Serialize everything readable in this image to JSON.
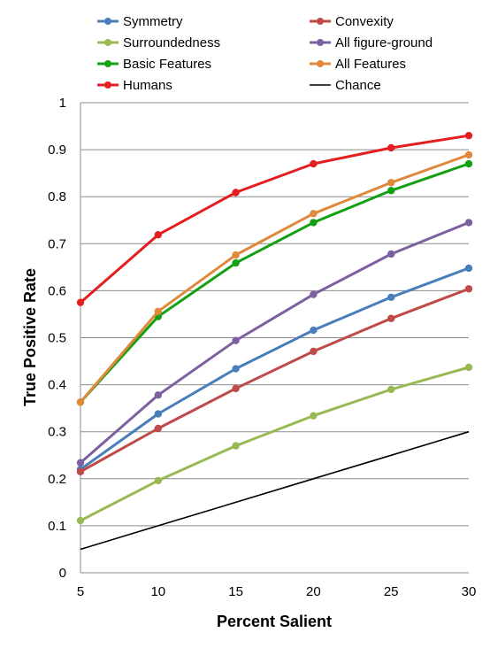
{
  "chart_data": {
    "type": "line",
    "title": "",
    "xlabel": "Percent Salient",
    "ylabel": "True Positive Rate",
    "x": [
      5,
      10,
      15,
      20,
      25,
      30
    ],
    "xlim": [
      5,
      30
    ],
    "ylim": [
      0,
      1
    ],
    "xticks": [
      "5",
      "10",
      "15",
      "20",
      "25",
      "30"
    ],
    "yticks": [
      "0",
      "0.1",
      "0.2",
      "0.3",
      "0.4",
      "0.5",
      "0.6",
      "0.7",
      "0.8",
      "0.9",
      "1"
    ],
    "grid": "horizontal",
    "legend_position": "top",
    "series": [
      {
        "name": "Symmetry",
        "color": "#4a7ebb",
        "markers": true,
        "values": [
          0.22,
          0.338,
          0.434,
          0.516,
          0.586,
          0.648
        ]
      },
      {
        "name": "Convexity",
        "color": "#be4b48",
        "markers": true,
        "values": [
          0.215,
          0.307,
          0.392,
          0.471,
          0.541,
          0.604
        ]
      },
      {
        "name": "Surroundedness",
        "color": "#98b954",
        "markers": true,
        "values": [
          0.111,
          0.196,
          0.27,
          0.334,
          0.39,
          0.437
        ]
      },
      {
        "name": "All figure-ground",
        "color": "#7d60a0",
        "markers": true,
        "values": [
          0.234,
          0.378,
          0.494,
          0.592,
          0.678,
          0.745
        ]
      },
      {
        "name": "Basic Features",
        "color": "#14a014",
        "markers": true,
        "values": [
          0.363,
          0.545,
          0.659,
          0.745,
          0.813,
          0.87
        ]
      },
      {
        "name": "All Features",
        "color": "#e0883c",
        "markers": true,
        "values": [
          0.363,
          0.556,
          0.676,
          0.764,
          0.83,
          0.889
        ]
      },
      {
        "name": "Humans",
        "color": "#e41e1e",
        "markers": true,
        "values": [
          0.575,
          0.719,
          0.809,
          0.87,
          0.904,
          0.93
        ]
      },
      {
        "name": "Chance",
        "color": "#000000",
        "markers": false,
        "values": [
          0.05,
          0.1,
          0.15,
          0.2,
          0.25,
          0.3
        ]
      }
    ]
  }
}
